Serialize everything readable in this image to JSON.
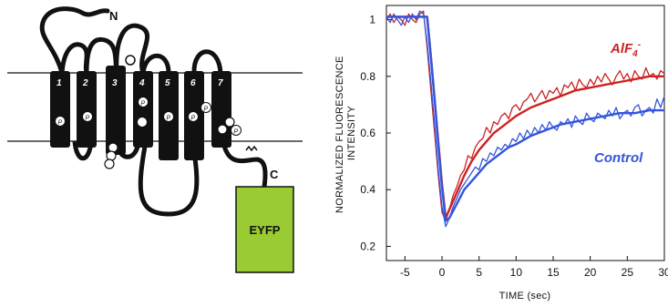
{
  "diagram": {
    "n_terminus": "N",
    "c_terminus": "C",
    "tag_label": "EYFP",
    "helix_numbers": [
      "1",
      "2",
      "3",
      "4",
      "5",
      "6",
      "7"
    ],
    "residue_labels": [
      "P",
      "P",
      "P",
      "P",
      "P",
      "P",
      "P"
    ],
    "colors": {
      "tag": "#99cc33",
      "protein": "#111111"
    }
  },
  "chart_data": {
    "type": "line",
    "xlabel": "TIME (sec)",
    "ylabel": "NORMALIZED FLUORESCENCE INTENSITY",
    "xlim": [
      -7.5,
      30
    ],
    "ylim": [
      0.15,
      1.05
    ],
    "xticks": [
      -5,
      0,
      5,
      10,
      15,
      20,
      25,
      30
    ],
    "yticks": [
      0.2,
      0.4,
      0.6,
      0.8,
      1
    ],
    "x_tick_labels": [
      "-5",
      "0",
      "5",
      "10",
      "15",
      "20",
      "25",
      "30"
    ],
    "y_tick_labels": [
      "0.2",
      "0.4",
      "0.6",
      "0.8",
      "1"
    ],
    "grid": false,
    "series": [
      {
        "name": "AlF4-",
        "color": "#cc2222",
        "label_text": "AlF",
        "label_sub": "4",
        "label_sup": "-",
        "x": [
          -7.5,
          -7,
          -6.5,
          -6,
          -5.5,
          -5,
          -4.5,
          -4,
          -3.5,
          -3,
          -2.5,
          -2,
          -1.5,
          -1,
          -0.5,
          0,
          0.5,
          1,
          1.5,
          2,
          2.5,
          3,
          3.5,
          4,
          4.5,
          5,
          5.5,
          6,
          6.5,
          7,
          7.5,
          8,
          8.5,
          9,
          9.5,
          10,
          10.5,
          11,
          11.5,
          12,
          12.5,
          13,
          13.5,
          14,
          14.5,
          15,
          15.5,
          16,
          16.5,
          17,
          17.5,
          18,
          18.5,
          19,
          19.5,
          20,
          20.5,
          21,
          21.5,
          22,
          22.5,
          23,
          23.5,
          24,
          24.5,
          25,
          25.5,
          26,
          26.5,
          27,
          27.5,
          28,
          28.5,
          29,
          29.5,
          30
        ],
        "y": [
          1.0,
          1.02,
          0.99,
          1.01,
          1.0,
          0.98,
          1.02,
          1.0,
          0.99,
          1.02,
          1.03,
          0.9,
          0.75,
          0.6,
          0.45,
          0.32,
          0.29,
          0.33,
          0.38,
          0.41,
          0.45,
          0.47,
          0.52,
          0.51,
          0.55,
          0.57,
          0.58,
          0.62,
          0.6,
          0.64,
          0.63,
          0.66,
          0.67,
          0.65,
          0.69,
          0.7,
          0.68,
          0.71,
          0.72,
          0.74,
          0.71,
          0.73,
          0.75,
          0.72,
          0.75,
          0.74,
          0.76,
          0.73,
          0.77,
          0.76,
          0.78,
          0.75,
          0.79,
          0.77,
          0.76,
          0.79,
          0.77,
          0.8,
          0.78,
          0.81,
          0.79,
          0.77,
          0.8,
          0.82,
          0.79,
          0.81,
          0.78,
          0.82,
          0.8,
          0.79,
          0.83,
          0.8,
          0.81,
          0.79,
          0.82,
          0.81
        ],
        "fit_x": [
          -7.5,
          -2,
          -1.5,
          -1,
          -0.5,
          0,
          0.5,
          1,
          2,
          3,
          4,
          5,
          6,
          7,
          8,
          9,
          10,
          12,
          14,
          16,
          18,
          20,
          22,
          24,
          26,
          28,
          30
        ],
        "fit_y": [
          1.01,
          1.01,
          0.87,
          0.72,
          0.57,
          0.42,
          0.3,
          0.33,
          0.39,
          0.45,
          0.5,
          0.54,
          0.57,
          0.6,
          0.62,
          0.64,
          0.66,
          0.69,
          0.71,
          0.73,
          0.75,
          0.76,
          0.77,
          0.78,
          0.79,
          0.8,
          0.8
        ]
      },
      {
        "name": "Control",
        "color": "#3355dd",
        "label_text": "Control",
        "x": [
          -7.5,
          -7,
          -6.5,
          -6,
          -5.5,
          -5,
          -4.5,
          -4,
          -3.5,
          -3,
          -2.5,
          -2,
          -1.5,
          -1,
          -0.5,
          0,
          0.5,
          1,
          1.5,
          2,
          2.5,
          3,
          3.5,
          4,
          4.5,
          5,
          5.5,
          6,
          6.5,
          7,
          7.5,
          8,
          8.5,
          9,
          9.5,
          10,
          10.5,
          11,
          11.5,
          12,
          12.5,
          13,
          13.5,
          14,
          14.5,
          15,
          15.5,
          16,
          16.5,
          17,
          17.5,
          18,
          18.5,
          19,
          19.5,
          20,
          20.5,
          21,
          21.5,
          22,
          22.5,
          23,
          23.5,
          24,
          24.5,
          25,
          25.5,
          26,
          26.5,
          27,
          27.5,
          28,
          28.5,
          29,
          29.5,
          30
        ],
        "y": [
          1.01,
          0.99,
          1.02,
          1.0,
          0.98,
          1.01,
          0.99,
          1.02,
          1.0,
          1.03,
          1.02,
          0.92,
          0.78,
          0.63,
          0.47,
          0.34,
          0.27,
          0.3,
          0.34,
          0.37,
          0.4,
          0.42,
          0.44,
          0.46,
          0.48,
          0.47,
          0.51,
          0.5,
          0.53,
          0.52,
          0.55,
          0.54,
          0.56,
          0.55,
          0.58,
          0.57,
          0.6,
          0.58,
          0.61,
          0.59,
          0.62,
          0.6,
          0.63,
          0.61,
          0.64,
          0.62,
          0.61,
          0.64,
          0.63,
          0.65,
          0.62,
          0.66,
          0.64,
          0.63,
          0.67,
          0.65,
          0.64,
          0.67,
          0.66,
          0.65,
          0.68,
          0.66,
          0.69,
          0.65,
          0.67,
          0.68,
          0.66,
          0.69,
          0.7,
          0.66,
          0.68,
          0.69,
          0.67,
          0.72,
          0.69,
          0.73
        ],
        "fit_x": [
          -7.5,
          -2,
          -1.5,
          -1,
          -0.5,
          0,
          0.5,
          1,
          2,
          3,
          4,
          5,
          6,
          7,
          8,
          9,
          10,
          12,
          14,
          16,
          18,
          20,
          22,
          24,
          26,
          28,
          30
        ],
        "fit_y": [
          1.01,
          1.01,
          0.87,
          0.72,
          0.56,
          0.41,
          0.29,
          0.3,
          0.35,
          0.4,
          0.43,
          0.46,
          0.49,
          0.51,
          0.53,
          0.55,
          0.56,
          0.59,
          0.61,
          0.63,
          0.64,
          0.65,
          0.66,
          0.67,
          0.67,
          0.68,
          0.68
        ]
      }
    ]
  }
}
